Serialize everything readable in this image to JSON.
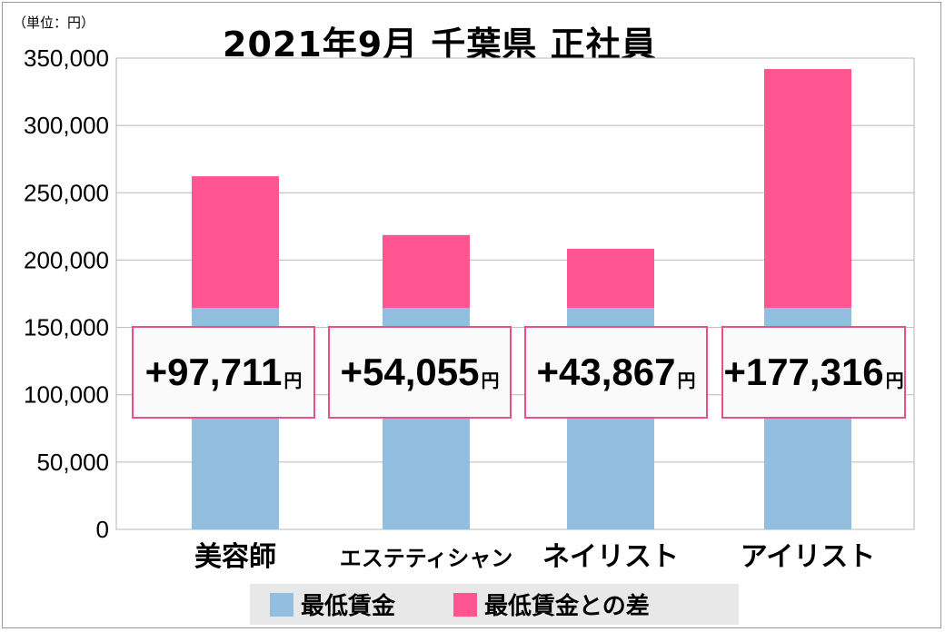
{
  "unit_label": "（単位：円）",
  "title": "2021年9月 千葉県 正社員",
  "colors": {
    "min_wage": "#92bfe0",
    "difference": "#ff5590",
    "box_border": "#e8508a"
  },
  "chart_data": {
    "type": "bar",
    "stacked": true,
    "title": "2021年9月 千葉県 正社員",
    "categories": [
      "美容師",
      "エステティシャン",
      "ネイリスト",
      "アイリスト"
    ],
    "series": [
      {
        "name": "最低賃金",
        "values": [
          164560,
          164560,
          164560,
          164560
        ]
      },
      {
        "name": "最低賃金との差",
        "values": [
          97711,
          54055,
          43867,
          177316
        ]
      }
    ],
    "ylim": [
      0,
      350000
    ],
    "yticks": [
      "0",
      "50,000",
      "100,000",
      "150,000",
      "200,000",
      "250,000",
      "300,000",
      "350,000"
    ],
    "ytick_values": [
      0,
      50000,
      100000,
      150000,
      200000,
      250000,
      300000,
      350000
    ],
    "grid": true,
    "legend_position": "bottom"
  },
  "diff_labels": [
    {
      "value": "+97,711",
      "unit": "円"
    },
    {
      "value": "+54,055",
      "unit": "円"
    },
    {
      "value": "+43,867",
      "unit": "円"
    },
    {
      "value": "+177,316",
      "unit": "円"
    }
  ],
  "legend": [
    {
      "label": "最低賃金"
    },
    {
      "label": "最低賃金との差"
    }
  ]
}
